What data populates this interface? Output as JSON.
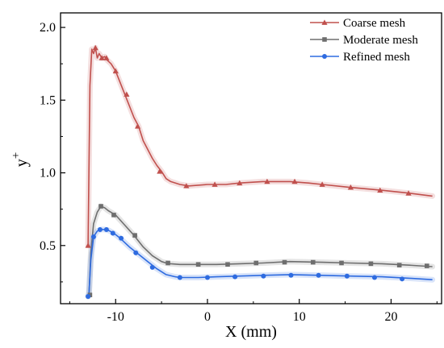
{
  "chart_data": {
    "type": "line",
    "xlabel": "X (mm)",
    "ylabel_main": "y",
    "ylabel_sup": "+",
    "xlim": [
      -16,
      25.5
    ],
    "ylim": [
      0.1,
      2.1
    ],
    "xticks": [
      -10,
      0,
      10,
      20
    ],
    "xtick_labels": [
      "-10",
      "0",
      "10",
      "20"
    ],
    "yticks": [
      0.5,
      1.0,
      1.5,
      2.0
    ],
    "ytick_labels": [
      "0.5",
      "1.0",
      "1.5",
      "2.0"
    ],
    "grid": false,
    "legend_position": "top-right",
    "series": [
      {
        "name": "Coarse mesh",
        "color": "#c0504d",
        "marker": "triangle",
        "x": [
          -13,
          -12.8,
          -12.6,
          -12.4,
          -12.2,
          -12.0,
          -11.8,
          -11.5,
          -11.2,
          -11.0,
          -10.5,
          -10.0,
          -9.0,
          -8.0,
          -7.5,
          -7.0,
          -6.0,
          -5.5,
          -5.0,
          -4.5,
          -4.0,
          -3.0,
          -2.0,
          0,
          2,
          3.5,
          6,
          9,
          11,
          12.5,
          15.5,
          19,
          22,
          24.5
        ],
        "y": [
          0.5,
          1.6,
          1.85,
          1.82,
          1.86,
          1.79,
          1.82,
          1.79,
          1.8,
          1.78,
          1.75,
          1.7,
          1.54,
          1.38,
          1.32,
          1.22,
          1.1,
          1.05,
          1.01,
          0.96,
          0.94,
          0.92,
          0.91,
          0.92,
          0.92,
          0.93,
          0.94,
          0.94,
          0.93,
          0.92,
          0.9,
          0.88,
          0.86,
          0.84
        ],
        "marker_x": [
          -13,
          -12.2,
          -11.5,
          -11.0,
          -10.0,
          -8.8,
          -7.6,
          -5.2,
          -2.3,
          0.8,
          3.5,
          6.5,
          9.5,
          12.5,
          15.6,
          18.8,
          21.9
        ],
        "marker_y": [
          0.5,
          1.86,
          1.79,
          1.79,
          1.7,
          1.54,
          1.32,
          1.01,
          0.91,
          0.92,
          0.93,
          0.94,
          0.94,
          0.92,
          0.9,
          0.88,
          0.86
        ]
      },
      {
        "name": "Moderate mesh",
        "color": "#6e6e6e",
        "marker": "square",
        "x": [
          -13,
          -12.9,
          -12.7,
          -12.4,
          -12.0,
          -11.6,
          -11.2,
          -10.8,
          -10.0,
          -9.0,
          -8.0,
          -7.0,
          -6.0,
          -5.0,
          -4.5,
          -4.0,
          -3.0,
          -1.0,
          1,
          3.5,
          6,
          9,
          12.5,
          15.5,
          19,
          22,
          24.5
        ],
        "y": [
          0.15,
          0.16,
          0.45,
          0.65,
          0.73,
          0.77,
          0.76,
          0.74,
          0.71,
          0.64,
          0.57,
          0.49,
          0.43,
          0.39,
          0.38,
          0.375,
          0.37,
          0.37,
          0.37,
          0.375,
          0.38,
          0.39,
          0.385,
          0.38,
          0.375,
          0.365,
          0.355
        ],
        "marker_x": [
          -12.8,
          -11.6,
          -10.2,
          -7.9,
          -4.3,
          -1.0,
          2.2,
          5.3,
          8.4,
          11.5,
          14.6,
          17.8,
          20.9,
          23.9
        ],
        "marker_y": [
          0.16,
          0.77,
          0.71,
          0.57,
          0.38,
          0.37,
          0.37,
          0.38,
          0.385,
          0.385,
          0.38,
          0.375,
          0.365,
          0.36
        ]
      },
      {
        "name": "Refined mesh",
        "color": "#2e6be0",
        "marker": "circle",
        "x": [
          -13,
          -12.9,
          -12.7,
          -12.4,
          -12.0,
          -11.6,
          -11.2,
          -10.8,
          -10.2,
          -9.5,
          -8.5,
          -7.5,
          -6.5,
          -5.5,
          -4.5,
          -3.5,
          -3.0,
          -1.0,
          1,
          3.5,
          6,
          9,
          12.5,
          15.5,
          19,
          22,
          24.5
        ],
        "y": [
          0.15,
          0.18,
          0.4,
          0.56,
          0.6,
          0.61,
          0.61,
          0.605,
          0.585,
          0.55,
          0.49,
          0.44,
          0.39,
          0.34,
          0.3,
          0.285,
          0.28,
          0.28,
          0.285,
          0.29,
          0.295,
          0.3,
          0.295,
          0.29,
          0.285,
          0.275,
          0.265
        ],
        "marker_x": [
          -13,
          -12.4,
          -11.7,
          -11.0,
          -10.3,
          -9.4,
          -7.8,
          -6.0,
          -3.0,
          0.0,
          3.0,
          6.1,
          9.1,
          12.1,
          15.2,
          18.2,
          21.2
        ],
        "marker_y": [
          0.15,
          0.56,
          0.61,
          0.61,
          0.585,
          0.55,
          0.45,
          0.35,
          0.28,
          0.28,
          0.285,
          0.29,
          0.295,
          0.295,
          0.29,
          0.28,
          0.27
        ]
      }
    ]
  }
}
